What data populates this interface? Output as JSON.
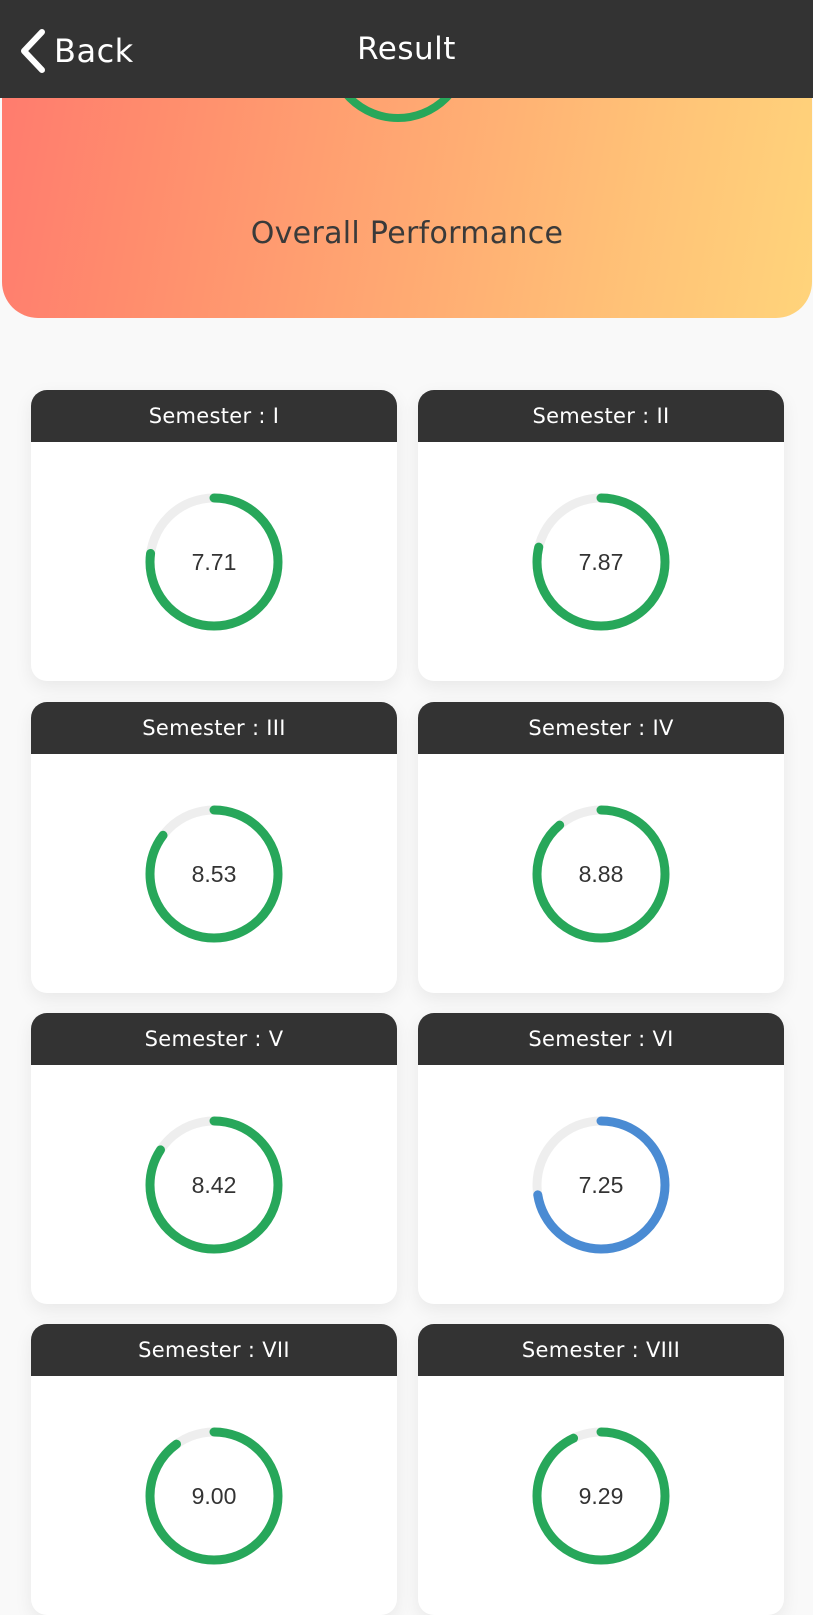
{
  "header": {
    "back_label": "Back",
    "title": "Result"
  },
  "overall": {
    "label": "Overall Performance",
    "ring_color": "#27a75a"
  },
  "colors": {
    "green": "#27a75a",
    "blue": "#4a8bd3",
    "track": "#eeeeee",
    "header_bg": "#333333"
  },
  "semesters": [
    {
      "label": "Semester : I",
      "value": "7.71",
      "color": "green"
    },
    {
      "label": "Semester : II",
      "value": "7.87",
      "color": "green"
    },
    {
      "label": "Semester : III",
      "value": "8.53",
      "color": "green"
    },
    {
      "label": "Semester : IV",
      "value": "8.88",
      "color": "green"
    },
    {
      "label": "Semester : V",
      "value": "8.42",
      "color": "green"
    },
    {
      "label": "Semester : VI",
      "value": "7.25",
      "color": "blue"
    },
    {
      "label": "Semester : VII",
      "value": "9.00",
      "color": "green"
    },
    {
      "label": "Semester : VIII",
      "value": "9.29",
      "color": "green"
    }
  ],
  "scale_max": 10
}
